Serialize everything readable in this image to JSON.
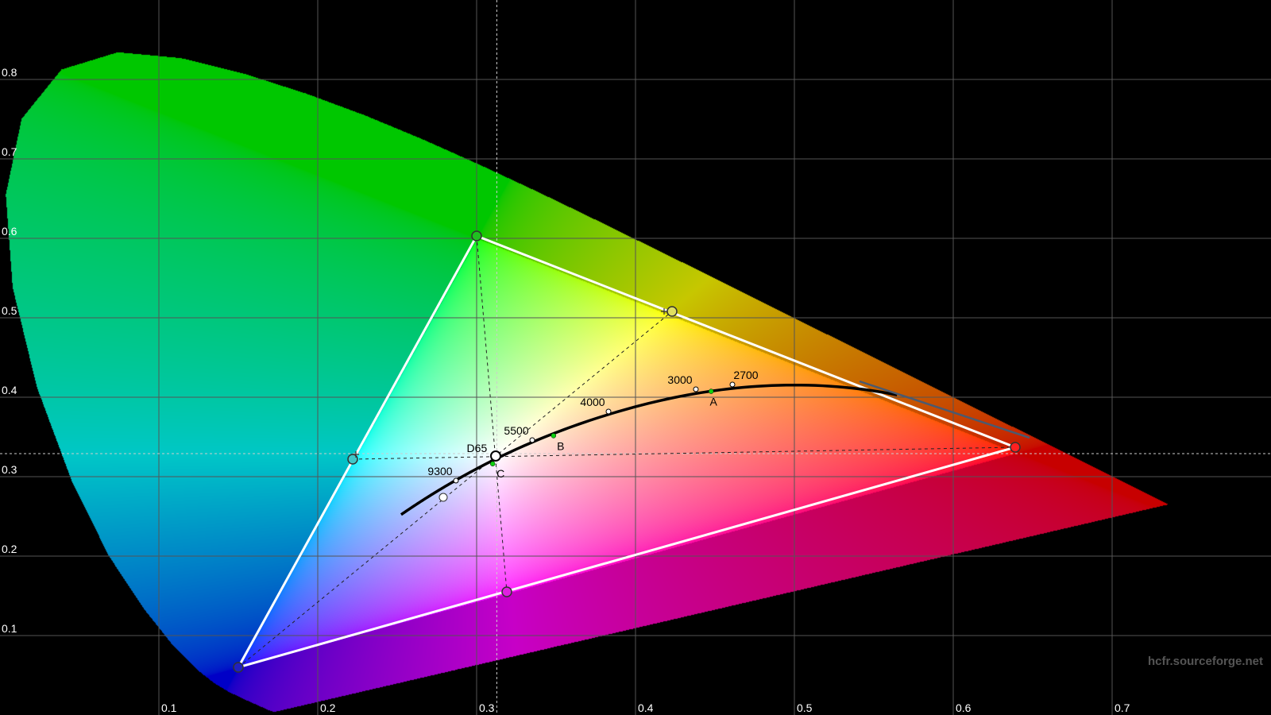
{
  "watermark": "hcfr.sourceforge.net",
  "chart_data": {
    "type": "scatter",
    "title": "",
    "xlabel": "",
    "ylabel": "",
    "xlim": [
      0,
      0.8
    ],
    "ylim": [
      0,
      0.9
    ],
    "grid": true,
    "x_ticks": [
      "0.1",
      "0.2",
      "0.3",
      "0.4",
      "0.5",
      "0.6",
      "0.7"
    ],
    "y_ticks": [
      "0.1",
      "0.2",
      "0.3",
      "0.4",
      "0.5",
      "0.6",
      "0.7",
      "0.8"
    ],
    "spectral_locus": [
      [
        0.1741,
        0.005
      ],
      [
        0.1733,
        0.0048
      ],
      [
        0.1714,
        0.0051
      ],
      [
        0.1689,
        0.0069
      ],
      [
        0.1644,
        0.0109
      ],
      [
        0.1566,
        0.0177
      ],
      [
        0.144,
        0.0297
      ],
      [
        0.1355,
        0.0399
      ],
      [
        0.1241,
        0.0578
      ],
      [
        0.1096,
        0.0868
      ],
      [
        0.0913,
        0.1327
      ],
      [
        0.0687,
        0.2007
      ],
      [
        0.0454,
        0.295
      ],
      [
        0.0235,
        0.4127
      ],
      [
        0.0082,
        0.5384
      ],
      [
        0.0039,
        0.6548
      ],
      [
        0.0139,
        0.7502
      ],
      [
        0.0389,
        0.812
      ],
      [
        0.0743,
        0.8338
      ],
      [
        0.1142,
        0.8262
      ],
      [
        0.1547,
        0.8059
      ],
      [
        0.1929,
        0.7816
      ],
      [
        0.2296,
        0.7543
      ],
      [
        0.2658,
        0.7243
      ],
      [
        0.3016,
        0.6923
      ],
      [
        0.3373,
        0.6589
      ],
      [
        0.3731,
        0.6245
      ],
      [
        0.4087,
        0.5896
      ],
      [
        0.4441,
        0.5547
      ],
      [
        0.4788,
        0.5202
      ],
      [
        0.5125,
        0.4866
      ],
      [
        0.5448,
        0.4544
      ],
      [
        0.5752,
        0.4242
      ],
      [
        0.6029,
        0.3965
      ],
      [
        0.627,
        0.3725
      ],
      [
        0.6658,
        0.334
      ],
      [
        0.6915,
        0.3083
      ],
      [
        0.719,
        0.2809
      ],
      [
        0.7347,
        0.2653
      ]
    ],
    "gamut": {
      "red": {
        "x": 0.639,
        "y": 0.337,
        "color": "#ff2020"
      },
      "green": {
        "x": 0.3,
        "y": 0.603,
        "color": "#20c020"
      },
      "blue": {
        "x": 0.15,
        "y": 0.06,
        "color": "#2020c0"
      },
      "cyan": {
        "x": 0.222,
        "y": 0.322,
        "color": "#40c8c8"
      },
      "magenta": {
        "x": 0.319,
        "y": 0.155,
        "color": "#e020e0"
      },
      "yellow": {
        "x": 0.423,
        "y": 0.508,
        "color": "#e0e060"
      },
      "white": {
        "x": 0.312,
        "y": 0.326,
        "color": "#ffffff"
      }
    },
    "target_white": {
      "x": 0.3127,
      "y": 0.329
    },
    "planckian_range_k": [
      1667,
      25000
    ],
    "planckian_points": [
      {
        "label": "9300",
        "x": 0.287,
        "y": 0.295
      },
      {
        "label": "5500",
        "x": 0.335,
        "y": 0.346
      },
      {
        "label": "4000",
        "x": 0.383,
        "y": 0.382
      },
      {
        "label": "3000",
        "x": 0.438,
        "y": 0.41
      },
      {
        "label": "2700",
        "x": 0.461,
        "y": 0.416
      }
    ],
    "illuminants": [
      {
        "label": "D65",
        "x": 0.3127,
        "y": 0.329
      },
      {
        "label": "A",
        "x": 0.4476,
        "y": 0.4074
      },
      {
        "label": "B",
        "x": 0.3484,
        "y": 0.3516
      },
      {
        "label": "C",
        "x": 0.3101,
        "y": 0.3162
      }
    ],
    "measured_point": {
      "x": 0.279,
      "y": 0.274
    }
  }
}
